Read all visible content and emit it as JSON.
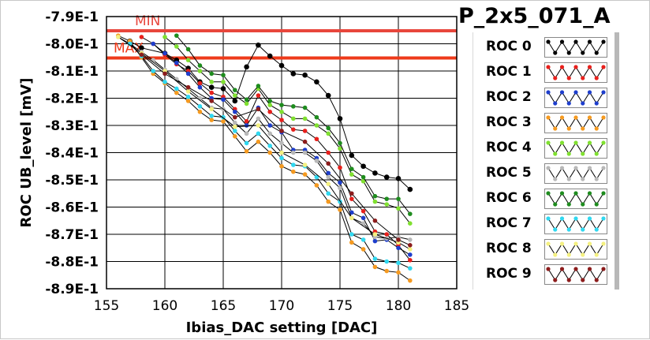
{
  "chart_data": {
    "type": "line",
    "title": "P_2x5_071_A",
    "xlabel": "Ibias_DAC setting [DAC]",
    "ylabel": "ROC UB_level [mV]",
    "xlim": [
      155,
      185
    ],
    "ylim": [
      -0.89,
      -0.79
    ],
    "x_ticks": [
      155,
      160,
      165,
      170,
      175,
      180,
      185
    ],
    "x_tick_labels": [
      "155",
      "160",
      "165",
      "170",
      "175",
      "180",
      "185"
    ],
    "y_ticks": [
      -0.79,
      -0.8,
      -0.81,
      -0.82,
      -0.83,
      -0.84,
      -0.85,
      -0.86,
      -0.87,
      -0.88,
      -0.89
    ],
    "y_tick_labels": [
      "-7.9E-1",
      "-8.0E-1",
      "-8.1E-1",
      "-8.2E-1",
      "-8.3E-1",
      "-8.4E-1",
      "-8.5E-1",
      "-8.6E-1",
      "-8.7E-1",
      "-8.8E-1",
      "-8.9E-1"
    ],
    "grid": true,
    "legend_position": "right",
    "reference_lines": [
      {
        "label": "MIN",
        "y": -0.7952,
        "color": "#e8463c"
      },
      {
        "label": "MAX",
        "y": -0.8052,
        "color": "#ee3a1a"
      }
    ],
    "series": [
      {
        "name": "ROC 0",
        "color": "#000000",
        "x": [
          157,
          158,
          160,
          161,
          162,
          163,
          164,
          165,
          166,
          167,
          168,
          169,
          170,
          171,
          172,
          173,
          174,
          175,
          176,
          177,
          178,
          179,
          180,
          181
        ],
        "y": [
          -0.799,
          -0.8015,
          -0.8035,
          -0.806,
          -0.809,
          -0.814,
          -0.816,
          -0.8165,
          -0.821,
          -0.8085,
          -0.8005,
          -0.8045,
          -0.808,
          -0.811,
          -0.8115,
          -0.814,
          -0.819,
          -0.8275,
          -0.841,
          -0.845,
          -0.8475,
          -0.849,
          -0.8495,
          -0.8535
        ]
      },
      {
        "name": "ROC 1",
        "color": "#e8201c",
        "x": [
          158,
          159,
          160,
          161,
          162,
          163,
          164,
          165,
          166,
          167,
          168,
          169,
          170,
          171,
          172,
          173,
          174,
          175,
          176,
          177,
          178,
          179,
          180,
          181
        ],
        "y": [
          -0.7975,
          -0.8,
          -0.804,
          -0.8075,
          -0.81,
          -0.8145,
          -0.818,
          -0.8195,
          -0.824,
          -0.8285,
          -0.819,
          -0.825,
          -0.828,
          -0.8315,
          -0.832,
          -0.835,
          -0.84,
          -0.8455,
          -0.857,
          -0.8615,
          -0.869,
          -0.87,
          -0.874,
          -0.8795
        ]
      },
      {
        "name": "ROC 2",
        "color": "#1e3ecc",
        "x": [
          159,
          160,
          161,
          162,
          163,
          164,
          165,
          166,
          167,
          168,
          169,
          170,
          171,
          172,
          173,
          174,
          175,
          176,
          177,
          178,
          179,
          180,
          181
        ],
        "y": [
          -0.8,
          -0.8035,
          -0.807,
          -0.811,
          -0.816,
          -0.82,
          -0.8205,
          -0.825,
          -0.83,
          -0.8235,
          -0.83,
          -0.8325,
          -0.839,
          -0.839,
          -0.842,
          -0.8475,
          -0.851,
          -0.862,
          -0.864,
          -0.8725,
          -0.872,
          -0.875,
          -0.8775
        ]
      },
      {
        "name": "ROC 3",
        "color": "#f59a20",
        "x": [
          156,
          157,
          158,
          159,
          160,
          161,
          162,
          163,
          164,
          165,
          166,
          167,
          168,
          169,
          170,
          171,
          172,
          173,
          174,
          175,
          176,
          177,
          178,
          179,
          180,
          181
        ],
        "y": [
          -0.797,
          -0.799,
          -0.805,
          -0.811,
          -0.8145,
          -0.818,
          -0.821,
          -0.825,
          -0.828,
          -0.8285,
          -0.834,
          -0.8395,
          -0.836,
          -0.84,
          -0.845,
          -0.847,
          -0.848,
          -0.852,
          -0.858,
          -0.861,
          -0.873,
          -0.8755,
          -0.882,
          -0.8835,
          -0.884,
          -0.887
        ]
      },
      {
        "name": "ROC 4",
        "color": "#80e030",
        "x": [
          160,
          161,
          162,
          163,
          164,
          165,
          166,
          167,
          168,
          169,
          170,
          171,
          172,
          173,
          174,
          175,
          176,
          177,
          178,
          179,
          180,
          181
        ],
        "y": [
          -0.7975,
          -0.801,
          -0.806,
          -0.81,
          -0.814,
          -0.814,
          -0.819,
          -0.822,
          -0.8165,
          -0.8225,
          -0.825,
          -0.8275,
          -0.8275,
          -0.83,
          -0.833,
          -0.8385,
          -0.848,
          -0.8505,
          -0.858,
          -0.859,
          -0.8605,
          -0.866
        ]
      },
      {
        "name": "ROC 5",
        "color": "#b8b8b8",
        "x": [
          156,
          157,
          158,
          159,
          160,
          161,
          162,
          163,
          164,
          165,
          166,
          167,
          168,
          169,
          170,
          171,
          172,
          173,
          174,
          175,
          176,
          177,
          178,
          179,
          180,
          181
        ],
        "y": [
          -0.7975,
          -0.8,
          -0.803,
          -0.806,
          -0.8095,
          -0.813,
          -0.8165,
          -0.82,
          -0.8235,
          -0.824,
          -0.829,
          -0.833,
          -0.8275,
          -0.833,
          -0.8365,
          -0.84,
          -0.84,
          -0.843,
          -0.849,
          -0.853,
          -0.864,
          -0.866,
          -0.871,
          -0.8715,
          -0.871,
          -0.872
        ]
      },
      {
        "name": "ROC 6",
        "color": "#1e8c1e",
        "x": [
          161,
          162,
          163,
          164,
          165,
          166,
          167,
          168,
          169,
          170,
          171,
          172,
          173,
          174,
          175,
          176,
          177,
          178,
          179,
          180,
          181
        ],
        "y": [
          -0.797,
          -0.802,
          -0.808,
          -0.811,
          -0.8115,
          -0.817,
          -0.8205,
          -0.8155,
          -0.821,
          -0.8225,
          -0.823,
          -0.8235,
          -0.827,
          -0.831,
          -0.8365,
          -0.846,
          -0.849,
          -0.856,
          -0.857,
          -0.857,
          -0.8625
        ]
      },
      {
        "name": "ROC 7",
        "color": "#30d8f0",
        "x": [
          157,
          158,
          159,
          160,
          161,
          162,
          163,
          164,
          165,
          166,
          167,
          168,
          169,
          170,
          171,
          172,
          173,
          174,
          175,
          176,
          177,
          178,
          179,
          180,
          181
        ],
        "y": [
          -0.8,
          -0.8045,
          -0.81,
          -0.814,
          -0.8165,
          -0.8195,
          -0.823,
          -0.8265,
          -0.827,
          -0.832,
          -0.8365,
          -0.833,
          -0.8375,
          -0.842,
          -0.8445,
          -0.845,
          -0.849,
          -0.855,
          -0.858,
          -0.87,
          -0.872,
          -0.879,
          -0.88,
          -0.8805,
          -0.8825
        ]
      },
      {
        "name": "ROC 8",
        "color": "#f4f080",
        "x": [
          156,
          158,
          160,
          162,
          164,
          166,
          168,
          170,
          172,
          174,
          176,
          178,
          180,
          181
        ],
        "y": [
          -0.7975,
          -0.8035,
          -0.81,
          -0.8175,
          -0.824,
          -0.8305,
          -0.83,
          -0.84,
          -0.8445,
          -0.8515,
          -0.864,
          -0.87,
          -0.873,
          -0.8755
        ]
      },
      {
        "name": "ROC 9",
        "color": "#8c1c1c",
        "x": [
          158,
          160,
          162,
          164,
          166,
          168,
          170,
          172,
          174,
          176,
          178,
          180,
          181
        ],
        "y": [
          -0.804,
          -0.811,
          -0.816,
          -0.821,
          -0.827,
          -0.824,
          -0.832,
          -0.836,
          -0.844,
          -0.855,
          -0.865,
          -0.872,
          -0.874
        ]
      }
    ]
  }
}
